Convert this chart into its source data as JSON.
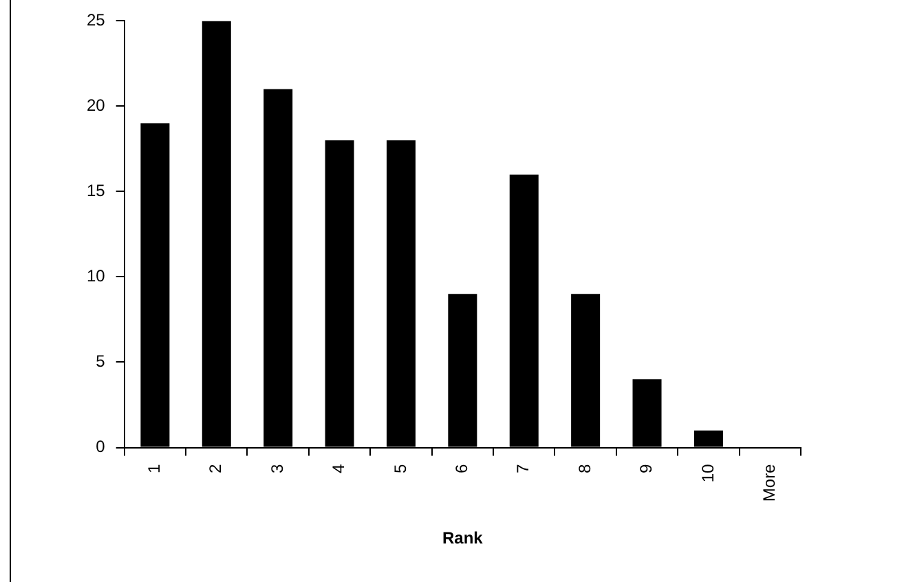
{
  "chart_data": {
    "type": "bar",
    "xlabel": "Rank",
    "categories": [
      "1",
      "2",
      "3",
      "4",
      "5",
      "6",
      "7",
      "8",
      "9",
      "10",
      "More"
    ],
    "values": [
      19,
      25,
      21,
      18,
      18,
      9,
      16,
      9,
      4,
      1,
      0
    ],
    "color": "#000000",
    "ylim": [
      0,
      25
    ],
    "yticks": [
      0,
      5,
      10,
      15,
      20,
      25
    ],
    "grid": false,
    "legend": false
  }
}
